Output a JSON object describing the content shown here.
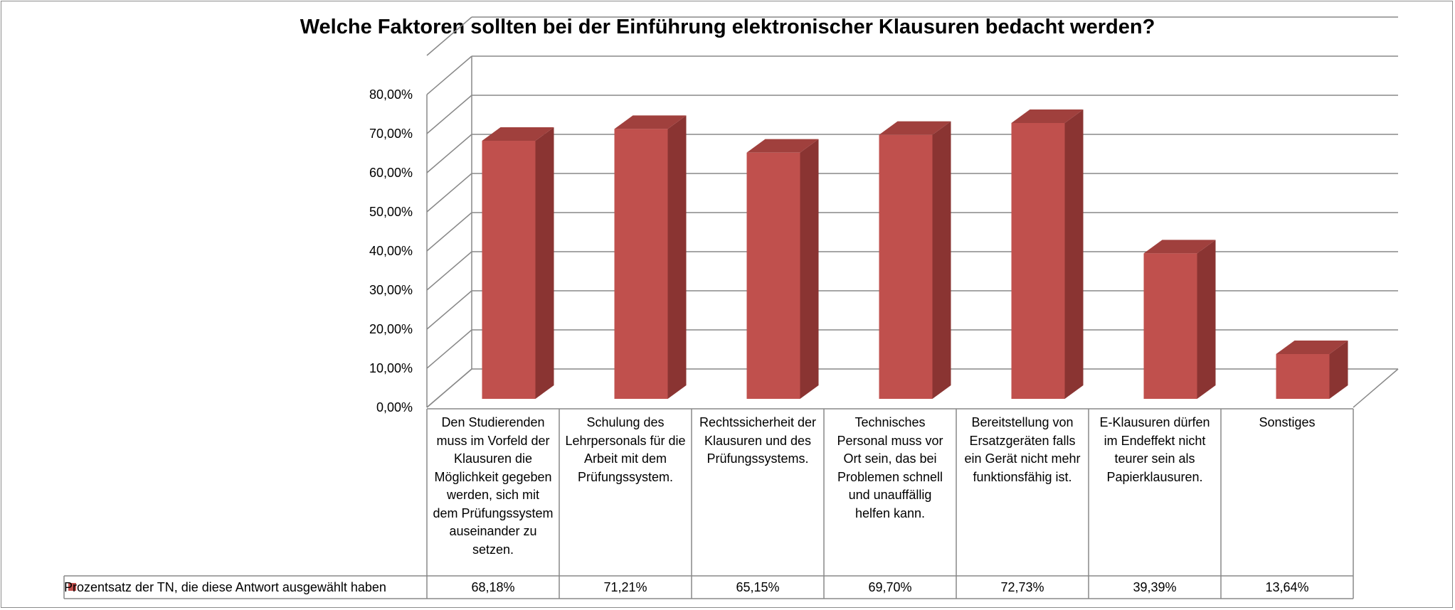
{
  "title": "Welche Faktoren sollten bei der Einführung elektronischer Klausuren bedacht werden?",
  "chart_data": {
    "type": "bar",
    "style": "3d-column-with-data-table",
    "title": "Welche Faktoren sollten bei der Einführung elektronischer Klausuren bedacht werden?",
    "categories": [
      "Den Studierenden muss im Vorfeld der Klausuren die Möglichkeit gegeben werden, sich mit dem Prüfungssystem auseinander zu setzen.",
      "Schulung des Lehrpersonals für die Arbeit mit dem Prüfungssystem.",
      "Rechtssicherheit der Klausuren und des Prüfungssystems.",
      "Technisches Personal muss vor Ort sein, das bei Problemen schnell und unauffällig helfen kann.",
      "Bereitstellung von Ersatzgeräten falls ein Gerät nicht mehr funktionsfähig ist.",
      "E-Klausuren dürfen im Endeffekt nicht teurer sein als Papierklausuren.",
      "Sonstiges"
    ],
    "series": [
      {
        "name": "Prozentsatz der TN, die diese Antwort ausgewählt haben",
        "values": [
          68.18,
          71.21,
          65.15,
          69.7,
          72.73,
          39.39,
          13.64
        ],
        "labels": [
          "68,18%",
          "71,21%",
          "65,15%",
          "69,70%",
          "72,73%",
          "39,39%",
          "13,64%"
        ],
        "color": "#c0504d"
      }
    ],
    "ylim": [
      0,
      80
    ],
    "yticks": [
      "0,00%",
      "10,00%",
      "20,00%",
      "30,00%",
      "40,00%",
      "50,00%",
      "60,00%",
      "70,00%",
      "80,00%"
    ],
    "grid": true,
    "legend": "data-table"
  }
}
